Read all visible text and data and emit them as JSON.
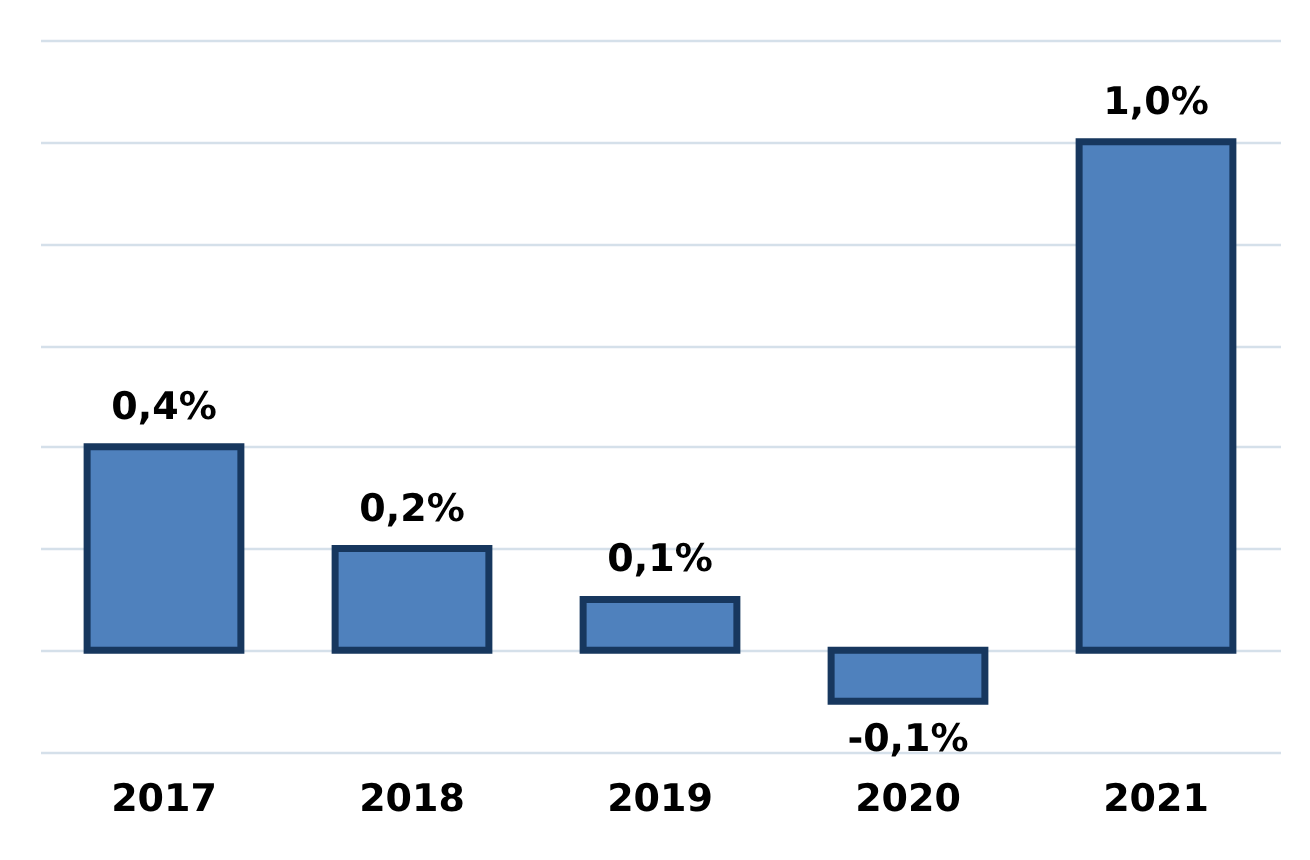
{
  "chart_data": {
    "type": "bar",
    "categories": [
      "2017",
      "2018",
      "2019",
      "2020",
      "2021"
    ],
    "values": [
      0.4,
      0.2,
      0.1,
      -0.1,
      1.0
    ],
    "value_labels": [
      "0,4%",
      "0,2%",
      "0,1%",
      "-0,1%",
      "1,0%"
    ],
    "color": "#4f81bd",
    "ylim": [
      -0.2,
      1.2
    ],
    "yticks": [
      {
        "value": -0.2,
        "label": null
      },
      {
        "value": 0,
        "label": null
      },
      {
        "value": 0.2,
        "label": null
      },
      {
        "value": 0.4,
        "label": null
      },
      {
        "value": 0.6,
        "label": null
      },
      {
        "value": 0.8,
        "label": null
      },
      {
        "value": 1.0,
        "label": null
      },
      {
        "value": 1.2,
        "label": null
      }
    ],
    "grid": true,
    "tick_labels": "x"
  }
}
